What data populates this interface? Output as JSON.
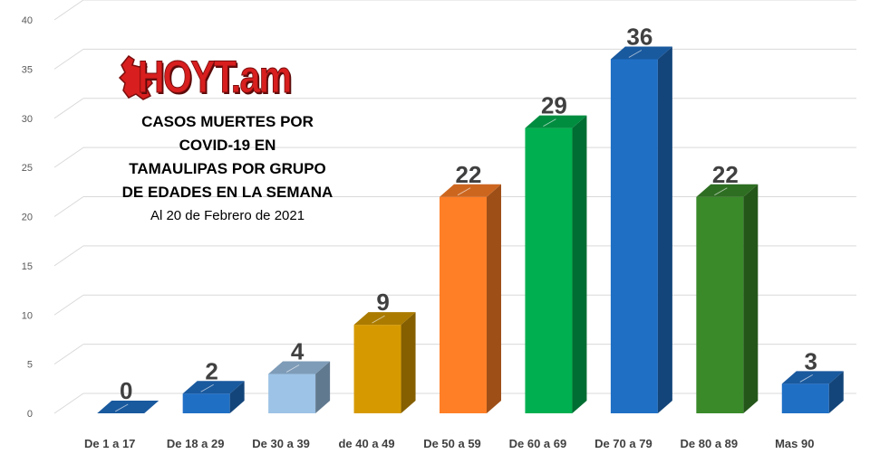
{
  "logo": {
    "text": "HOYT.am",
    "map_icon": "tamaulipas-map-icon"
  },
  "title": {
    "lines": [
      "CASOS MUERTES POR",
      "COVID-19 EN",
      "TAMAULIPAS POR GRUPO",
      "DE EDADES EN LA SEMANA"
    ],
    "subtitle": "Al 20 de Febrero de 2021"
  },
  "chart_data": {
    "type": "bar",
    "title": "CASOS MUERTES POR COVID-19 EN TAMAULIPAS POR GRUPO DE EDADES EN LA SEMANA",
    "subtitle": "Al 20 de Febrero de 2021",
    "xlabel": "",
    "ylabel": "",
    "categories": [
      "De 1 a 17",
      "De 18 a 29",
      "De 30 a 39",
      "de 40 a 49",
      "De 50 a 59",
      "De 60 a 69",
      "De 70 a 79",
      "De 80 a 89",
      "Mas 90"
    ],
    "values": [
      0,
      2,
      4,
      9,
      22,
      29,
      36,
      22,
      3
    ],
    "bar_colors": [
      "#1f6fc5",
      "#1f6fc5",
      "#9dc3e6",
      "#d69a00",
      "#ff7f27",
      "#00b050",
      "#1f6fc5",
      "#3a8a2a",
      "#1f6fc5"
    ],
    "ylim": [
      0,
      40
    ],
    "yticks": [
      0,
      5,
      10,
      15,
      20,
      25,
      30,
      35,
      40
    ],
    "grid": true,
    "data_labels": true,
    "style": "3d"
  }
}
